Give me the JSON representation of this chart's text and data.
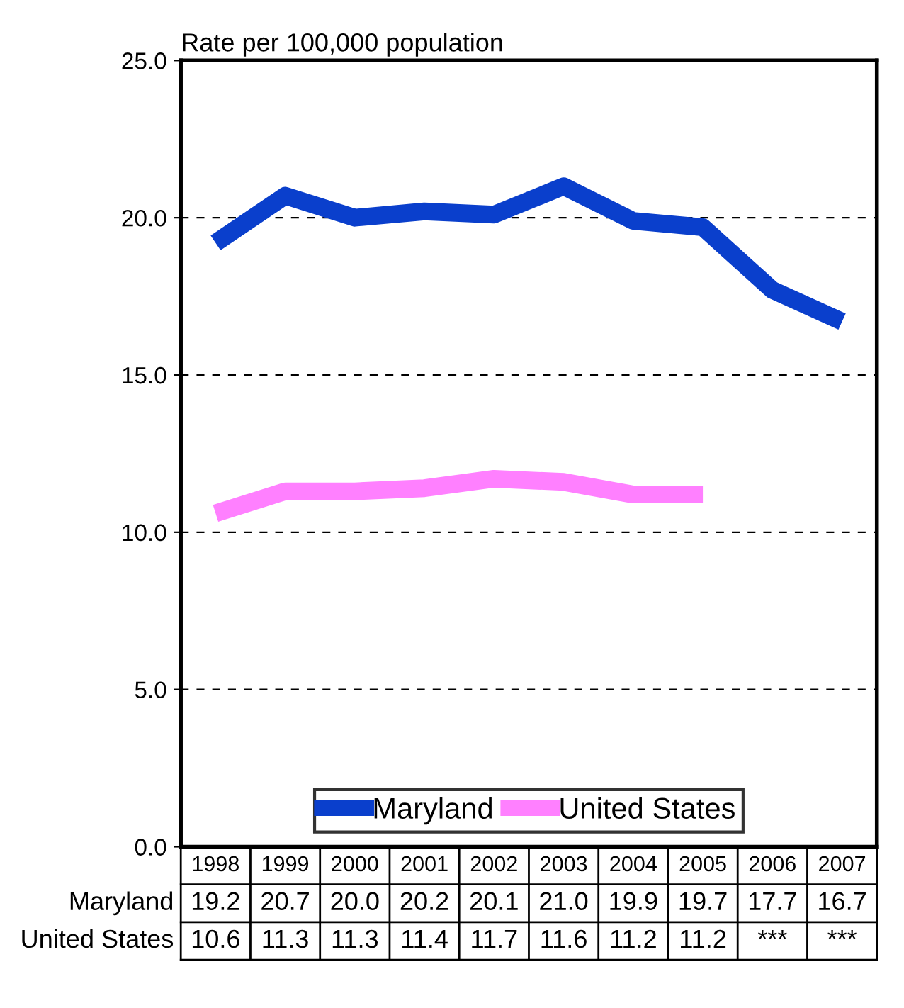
{
  "chart_data": {
    "type": "line",
    "ylabel": "Rate per 100,000 population",
    "categories": [
      "1998",
      "1999",
      "2000",
      "2001",
      "2002",
      "2003",
      "2004",
      "2005",
      "2006",
      "2007"
    ],
    "series": [
      {
        "name": "Maryland",
        "color": "#0a3fcc",
        "values": [
          19.2,
          20.7,
          20.0,
          20.2,
          20.1,
          21.0,
          19.9,
          19.7,
          17.7,
          16.7
        ],
        "value_labels": [
          "19.2",
          "20.7",
          "20.0",
          "20.2",
          "20.1",
          "21.0",
          "19.9",
          "19.7",
          "17.7",
          "16.7"
        ]
      },
      {
        "name": "United States",
        "color": "#ff80ff",
        "values": [
          10.6,
          11.3,
          11.3,
          11.4,
          11.7,
          11.6,
          11.2,
          11.2,
          null,
          null
        ],
        "value_labels": [
          "10.6",
          "11.3",
          "11.3",
          "11.4",
          "11.7",
          "11.6",
          "11.2",
          "11.2",
          "***",
          "***"
        ]
      }
    ],
    "ylim": [
      0,
      25
    ],
    "yticks": [
      {
        "value": 0,
        "label": "0.0"
      },
      {
        "value": 5,
        "label": "5.0"
      },
      {
        "value": 10,
        "label": "10.0"
      },
      {
        "value": 15,
        "label": "15.0"
      },
      {
        "value": 20,
        "label": "20.0"
      },
      {
        "value": 25,
        "label": "25.0"
      }
    ],
    "grid": "y",
    "legend": "bottom",
    "marker": "none",
    "line_style": "solid"
  }
}
